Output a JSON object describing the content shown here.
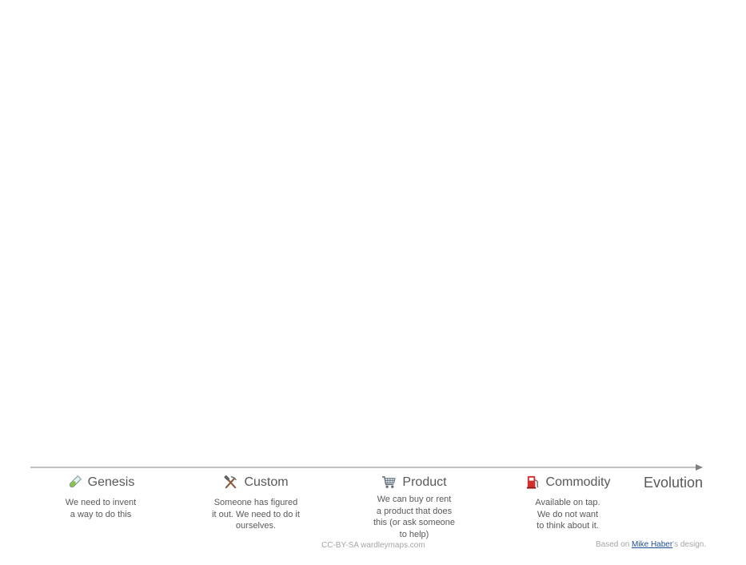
{
  "axis": {
    "label": "Evolution"
  },
  "stages": [
    {
      "name": "Genesis",
      "icon": "test-tube-icon",
      "description": "We need to invent\na way to do this"
    },
    {
      "name": "Custom",
      "icon": "hammer-and-pick-icon",
      "description": "Someone has figured\nit out. We need to do it\nourselves."
    },
    {
      "name": "Product",
      "icon": "shopping-cart-icon",
      "description": "We can buy or rent\na product that does\nthis (or ask someone\nto help)"
    },
    {
      "name": "Commodity",
      "icon": "fuel-pump-icon",
      "description": "Available on tap.\nWe do not want\nto think about it."
    }
  ],
  "footer": {
    "license": "CC-BY-SA wardleymaps.com",
    "credit_prefix": "Based on ",
    "credit_link": "Mike Haber",
    "credit_suffix": "'s design."
  },
  "colors": {
    "axis": "#7f7f7f",
    "text": "#595959",
    "muted": "#a6a6a6",
    "link": "#1f4e9a"
  }
}
